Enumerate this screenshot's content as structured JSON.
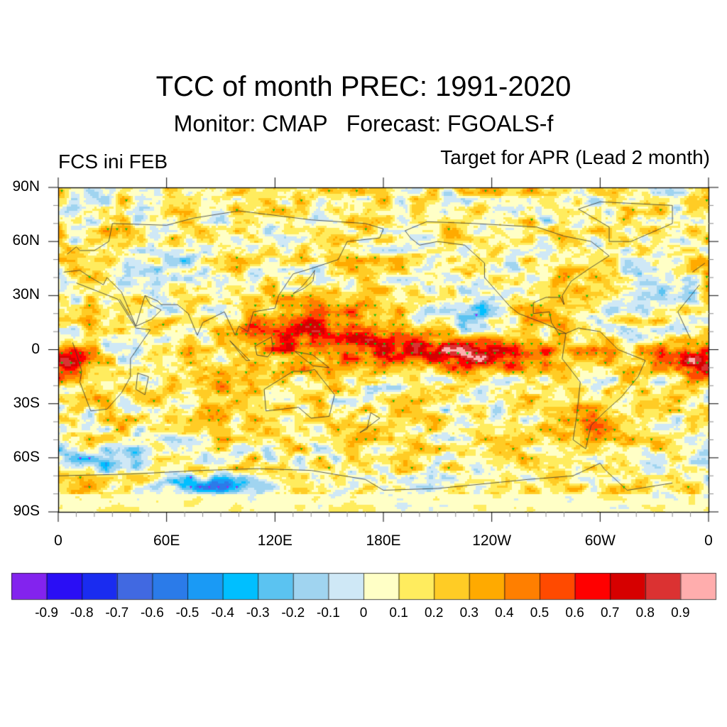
{
  "chart_data": {
    "type": "heatmap",
    "title": "TCC of month PREC: 1991-2020",
    "subtitle": "Monitor: CMAP   Forecast: FGOALS-f",
    "left_label": "FCS ini FEB",
    "right_label": "Target for APR (Lead 2 month)",
    "projection": "cylindrical equidistant, global, centered 180",
    "x_range": [
      0,
      360
    ],
    "y_range": [
      -90,
      90
    ],
    "x_ticks": [
      {
        "value": 0,
        "label": "0"
      },
      {
        "value": 60,
        "label": "60E"
      },
      {
        "value": 120,
        "label": "120E"
      },
      {
        "value": 180,
        "label": "180E"
      },
      {
        "value": 240,
        "label": "120W"
      },
      {
        "value": 300,
        "label": "60W"
      },
      {
        "value": 360,
        "label": "0"
      }
    ],
    "y_ticks": [
      {
        "value": 90,
        "label": "90N"
      },
      {
        "value": 60,
        "label": "60N"
      },
      {
        "value": 30,
        "label": "30N"
      },
      {
        "value": 0,
        "label": "0"
      },
      {
        "value": -30,
        "label": "30S"
      },
      {
        "value": -60,
        "label": "60S"
      },
      {
        "value": -90,
        "label": "90S"
      }
    ],
    "colorbar": {
      "levels": [
        -0.9,
        -0.8,
        -0.7,
        -0.6,
        -0.5,
        -0.4,
        -0.3,
        -0.2,
        -0.1,
        0,
        0.1,
        0.2,
        0.3,
        0.4,
        0.5,
        0.6,
        0.7,
        0.8,
        0.9
      ],
      "labels": [
        "-0.9",
        "-0.8",
        "-0.7",
        "-0.6",
        "-0.5",
        "-0.4",
        "-0.3",
        "-0.2",
        "-0.1",
        "0",
        "0.1",
        "0.2",
        "0.3",
        "0.4",
        "0.5",
        "0.6",
        "0.7",
        "0.8",
        "0.9"
      ],
      "colors": [
        "#8323ee",
        "#2a0ef5",
        "#1a2cf0",
        "#4169e1",
        "#2b7be9",
        "#1a9af5",
        "#00bfff",
        "#5bc3f1",
        "#a0d4f0",
        "#cfe8f6",
        "#ffffc6",
        "#ffec5e",
        "#ffcc25",
        "#ffaa00",
        "#ff7f00",
        "#ff4a00",
        "#ff0000",
        "#d60000",
        "#db3232",
        "#ffadad"
      ]
    },
    "stippling": {
      "positive_significant_color": "#10c010",
      "negative_significant_color": "#a020f0"
    },
    "features": [
      {
        "region": "Equatorial central-eastern Pacific (160E-90W, 10S-10N)",
        "tcc_range": [
          0.6,
          0.8
        ],
        "significant": true
      },
      {
        "region": "Maritime Continent / Western Pacific",
        "tcc_range": [
          0.4,
          0.7
        ],
        "significant": true
      },
      {
        "region": "Tropical Indian Ocean / Atlantic",
        "tcc_range": [
          0.2,
          0.6
        ],
        "significant": true
      },
      {
        "region": "Southern Ocean south of Africa (~60S, 0-40E)",
        "tcc_range": [
          -0.6,
          -0.3
        ],
        "significant": true
      },
      {
        "region": "Antarctic coast (~75S, 60-100E)",
        "tcc_range": [
          -0.6,
          -0.3
        ],
        "significant": true
      },
      {
        "region": "Mid-latitudes",
        "tcc_range": [
          -0.4,
          0.4
        ],
        "significant": false
      }
    ]
  }
}
